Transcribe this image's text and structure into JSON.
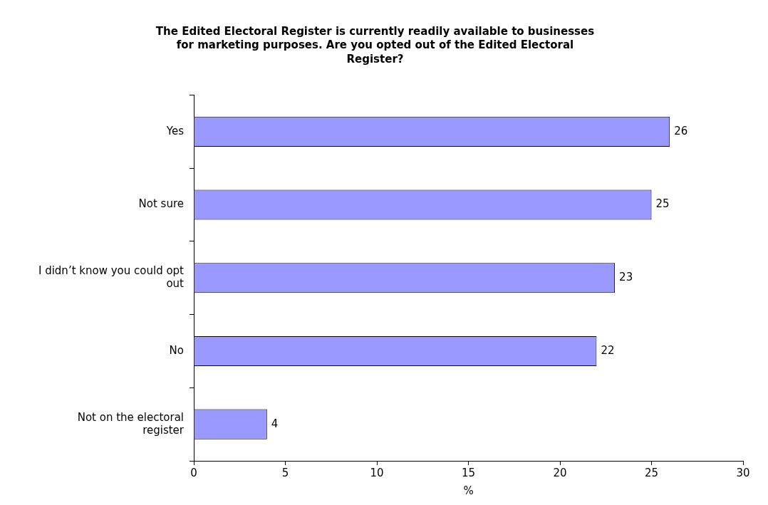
{
  "chart_data": {
    "type": "bar",
    "orientation": "horizontal",
    "title": "The Edited Electoral Register is currently readily available to businesses for marketing purposes. Are you opted out of the Edited Electoral Register?",
    "xlabel": "%",
    "categories": [
      "Yes",
      "Not sure",
      "I didn’t know you could opt out",
      "No",
      "Not on the electoral register"
    ],
    "values": [
      26,
      25,
      23,
      22,
      4
    ],
    "color": "#9999ff",
    "xlim": [
      0,
      30
    ],
    "xticks": [
      0,
      5,
      10,
      15,
      20,
      25,
      30
    ],
    "grid": false,
    "legend": false,
    "data_labels": true
  }
}
